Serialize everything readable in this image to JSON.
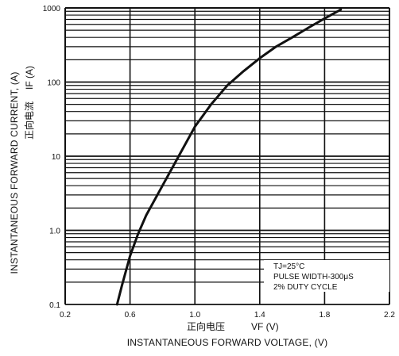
{
  "chart_data": {
    "type": "line",
    "series": [
      {
        "x": [
          0.52,
          0.55,
          0.6,
          0.65,
          0.7,
          0.8,
          0.9,
          1.0,
          1.1,
          1.2,
          1.3,
          1.4,
          1.5,
          1.6,
          1.7,
          1.8,
          1.9
        ],
        "y": [
          0.1,
          0.18,
          0.45,
          0.9,
          1.6,
          4,
          10,
          25,
          50,
          90,
          140,
          210,
          300,
          400,
          540,
          720,
          950
        ]
      }
    ],
    "xlim": [
      0.2,
      2.2
    ],
    "ylim": [
      0.1,
      1000
    ],
    "yscale": "log",
    "grid": true,
    "xticks": [
      "0.2",
      "0.6",
      "1.0",
      "1.4",
      "1.8",
      "2.2"
    ],
    "yticks": [
      "0.1",
      "1.0",
      "10",
      "100",
      "1000"
    ],
    "xlabel": "INSTANTANEOUS FORWARD VOLTAGE, (V)",
    "xlabel_cn": "正向电压",
    "xlabel_symbol": "VF (V)",
    "ylabel": "INSTANTANEOUS FORWARD CURRENT, (A)",
    "ylabel_cn": "正向电流",
    "ylabel_symbol": "IF (A)",
    "annotations": [
      "TJ=25°C",
      "PULSE WIDTH-300μS",
      "2% DUTY CYCLE"
    ],
    "colors": {
      "line": "#111111",
      "grid": "#111111",
      "background": "#ffffff"
    }
  }
}
